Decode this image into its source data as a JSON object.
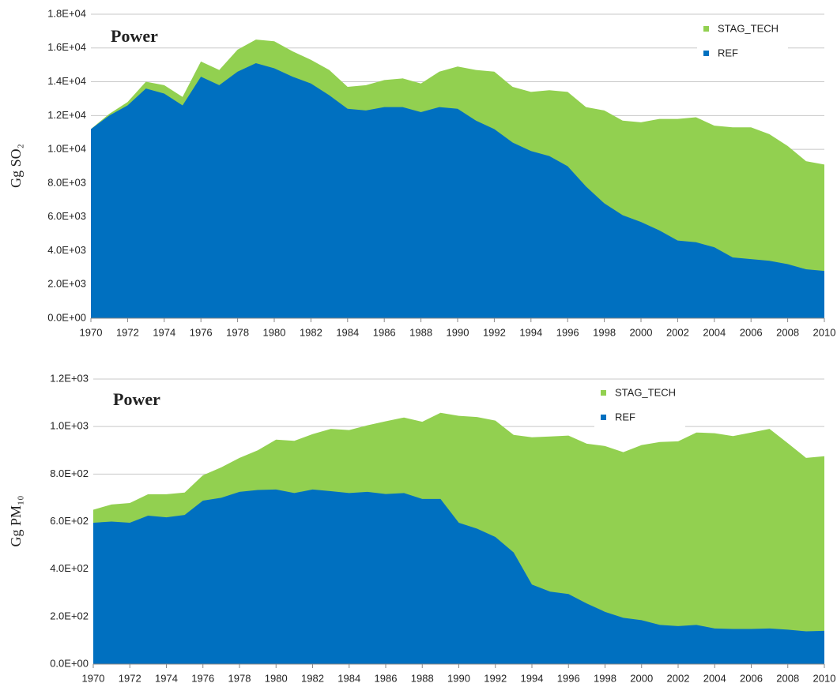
{
  "chart_data": [
    {
      "type": "area",
      "stacked": false,
      "title": "Power",
      "y_label": "Gg SO₂",
      "legend": "upper right",
      "grid": true,
      "x": [
        1970,
        1971,
        1972,
        1973,
        1974,
        1975,
        1976,
        1977,
        1978,
        1979,
        1980,
        1981,
        1982,
        1983,
        1984,
        1985,
        1986,
        1987,
        1988,
        1989,
        1990,
        1991,
        1992,
        1993,
        1994,
        1995,
        1996,
        1997,
        1998,
        1999,
        2000,
        2001,
        2002,
        2003,
        2004,
        2005,
        2006,
        2007,
        2008,
        2009,
        2010
      ],
      "xlim": [
        1970,
        2010
      ],
      "xticks": [
        1970,
        1972,
        1974,
        1976,
        1978,
        1980,
        1982,
        1984,
        1986,
        1988,
        1990,
        1992,
        1994,
        1996,
        1998,
        2000,
        2002,
        2004,
        2006,
        2008,
        2010
      ],
      "ylim": [
        0,
        18000
      ],
      "yticks": [
        {
          "value": 0,
          "label": "0.0E+00"
        },
        {
          "value": 2000,
          "label": "2.0E+03"
        },
        {
          "value": 4000,
          "label": "4.0E+03"
        },
        {
          "value": 6000,
          "label": "6.0E+03"
        },
        {
          "value": 8000,
          "label": "8.0E+03"
        },
        {
          "value": 10000,
          "label": "1.0E+04"
        },
        {
          "value": 12000,
          "label": "1.2E+04"
        },
        {
          "value": 14000,
          "label": "1.4E+04"
        },
        {
          "value": 16000,
          "label": "1.6E+04"
        },
        {
          "value": 18000,
          "label": "1.8E+04"
        }
      ],
      "series": [
        {
          "name": "STAG_TECH",
          "color": "#92d050",
          "values": [
            11200,
            12100,
            12800,
            14000,
            13800,
            13100,
            15200,
            14700,
            15900,
            16500,
            16400,
            15800,
            15300,
            14700,
            13700,
            13800,
            14100,
            14200,
            13900,
            14600,
            14900,
            14700,
            14600,
            13700,
            13400,
            13500,
            13400,
            12500,
            12300,
            11700,
            11600,
            11800,
            11800,
            11900,
            11400,
            11300,
            11300,
            10900,
            10200,
            9300,
            9100
          ]
        },
        {
          "name": "REF",
          "color": "#0070c0",
          "values": [
            11200,
            12000,
            12600,
            13600,
            13300,
            12600,
            14300,
            13800,
            14600,
            15100,
            14800,
            14300,
            13900,
            13200,
            12400,
            12300,
            12500,
            12500,
            12200,
            12500,
            12400,
            11700,
            11200,
            10400,
            9900,
            9600,
            9000,
            7800,
            6800,
            6100,
            5700,
            5200,
            4600,
            4500,
            4200,
            3600,
            3500,
            3400,
            3200,
            2900,
            2800
          ]
        }
      ]
    },
    {
      "type": "area",
      "stacked": false,
      "title": "Power",
      "y_label": "Gg PM₁₀",
      "legend": "upper right",
      "grid": true,
      "x": [
        1970,
        1971,
        1972,
        1973,
        1974,
        1975,
        1976,
        1977,
        1978,
        1979,
        1980,
        1981,
        1982,
        1983,
        1984,
        1985,
        1986,
        1987,
        1988,
        1989,
        1990,
        1991,
        1992,
        1993,
        1994,
        1995,
        1996,
        1997,
        1998,
        1999,
        2000,
        2001,
        2002,
        2003,
        2004,
        2005,
        2006,
        2007,
        2008,
        2009,
        2010
      ],
      "xlim": [
        1970,
        2010
      ],
      "xticks": [
        1970,
        1972,
        1974,
        1976,
        1978,
        1980,
        1982,
        1984,
        1986,
        1988,
        1990,
        1992,
        1994,
        1996,
        1998,
        2000,
        2002,
        2004,
        2006,
        2008,
        2010
      ],
      "ylim": [
        0,
        1200
      ],
      "yticks": [
        {
          "value": 0,
          "label": "0.0E+00"
        },
        {
          "value": 200,
          "label": "2.0E+02"
        },
        {
          "value": 400,
          "label": "4.0E+02"
        },
        {
          "value": 600,
          "label": "6.0E+02"
        },
        {
          "value": 800,
          "label": "8.0E+02"
        },
        {
          "value": 1000,
          "label": "1.0E+03"
        },
        {
          "value": 1200,
          "label": "1.2E+03"
        }
      ],
      "series": [
        {
          "name": "STAG_TECH",
          "color": "#92d050",
          "values": [
            650,
            672,
            678,
            715,
            715,
            722,
            795,
            828,
            868,
            900,
            945,
            940,
            968,
            990,
            985,
            1005,
            1022,
            1038,
            1020,
            1058,
            1045,
            1040,
            1025,
            965,
            955,
            958,
            962,
            928,
            918,
            892,
            922,
            935,
            938,
            975,
            972,
            960,
            975,
            990,
            930,
            868,
            875
          ]
        },
        {
          "name": "REF",
          "color": "#0070c0",
          "values": [
            595,
            600,
            595,
            625,
            618,
            628,
            688,
            700,
            725,
            733,
            735,
            720,
            735,
            728,
            720,
            725,
            716,
            720,
            695,
            695,
            595,
            570,
            535,
            470,
            335,
            305,
            295,
            255,
            220,
            195,
            185,
            165,
            160,
            165,
            150,
            148,
            148,
            150,
            145,
            138,
            140
          ]
        }
      ]
    }
  ]
}
